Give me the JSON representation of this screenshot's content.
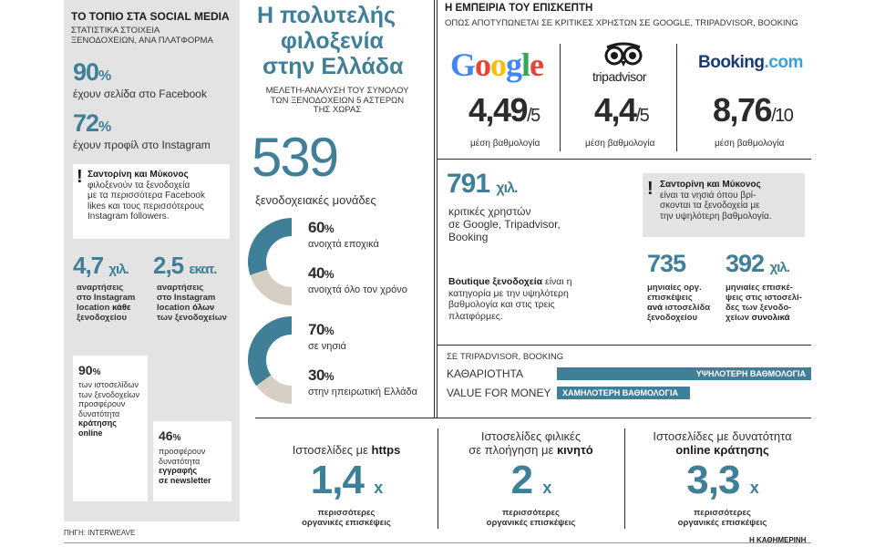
{
  "left": {
    "heading": "ΤΟ ΤΟΠΙΟ ΣΤΑ SOCIAL MEDIA",
    "subheading_line1": "ΣΤΑΤΙΣΤΙΚΑ ΣΤΟΙΧΕΙΑ",
    "subheading_line2": "ΞΕΝΟΔΟΧΕΙΩΝ, ΑΝΑ ΠΛΑΤΦΟΡΜΑ",
    "facebook_pct": "90",
    "facebook_text": "έχουν σελίδα στο Facebook",
    "instagram_pct": "72",
    "instagram_text": "έχουν προφίλ στο Instagram",
    "note_excl": "!",
    "note_bold": "Σαντορίνη και Μύκονος",
    "note_line1": "φιλοξενούν τα ξενοδοχεία",
    "note_line2": "με τα περισσότερα Facebook",
    "note_line3": "likes και τους περισσότερους",
    "note_line4": "Instagram followers.",
    "stat_a_value": "4,7",
    "stat_a_unit": "χιλ.",
    "stat_a_line1": "αναρτήσεις",
    "stat_a_line2": "στο Instagram",
    "stat_a_line3": "location",
    "stat_a_line3_bold": "κάθε",
    "stat_a_line4": "ξενοδοχείου",
    "stat_b_value": "2,5",
    "stat_b_unit": "εκατ.",
    "stat_b_line1": "αναρτήσεις",
    "stat_b_line2": "στο Instagram",
    "stat_b_line3": "location",
    "stat_b_line3_bold": "όλων",
    "stat_b_line4": "των ξενοδοχείων",
    "booking_pct": "90",
    "booking_line1": "των ιστοσελίδων",
    "booking_line2": "των ξενοδοχείων",
    "booking_line3": "προσφέρουν",
    "booking_line4": "δυνατότητα",
    "booking_line5": "κράτησης",
    "booking_line6": "online",
    "newsletter_pct": "46",
    "newsletter_line1": "προσφέρουν",
    "newsletter_line2": "δυνατότητα",
    "newsletter_line3": "εγγραφής",
    "newsletter_line4": "σε newsletter",
    "source": "ΠΗΓΗ: INTERWEAVE"
  },
  "middle": {
    "title_line1": "Η πολυτελής",
    "title_line2": "φιλοξενία",
    "title_line3": "στην Ελλάδα",
    "sub_line1": "ΜΕΛΕΤΗ-ΑΝΑΛΥΣΗ ΤΟΥ ΣΥΝΟΛΟΥ",
    "sub_line2": "ΤΩΝ ΞΕΝΟΔΟΧΕΙΩΝ 5 ΑΣΤΕΡΩΝ",
    "sub_line3": "ΤΗΣ ΧΩΡΑΣ",
    "total": "539",
    "total_label": "ξενοδοχειακές μονάδες",
    "donut1": {
      "a_pct": "60",
      "a_label": "ανοιχτά εποχικά",
      "b_pct": "40",
      "b_label": "ανοιχτά όλο τον χρόνο",
      "a_value": 0.6
    },
    "donut2": {
      "a_pct": "70",
      "a_label": "σε νησιά",
      "b_pct": "30",
      "b_label": "στην ηπειρωτική Ελλάδα",
      "a_value": 0.7
    }
  },
  "right": {
    "heading": "Η ΕΜΠΕΙΡΙΑ ΤΟΥ ΕΠΙΣΚΕΠΤΗ",
    "subheading": "ΟΠΩΣ ΑΠΟΤΥΠΩΝΕΤΑΙ ΣΕ ΚΡΙΤΙΚΕΣ ΧΡΗΣΤΩΝ ΣΕ GOOGLE, TRIPADVISOR, BOOKING",
    "google": {
      "logo": "Google",
      "rating": "4,49",
      "scale": "/5",
      "label": "μέση βαθμολογία"
    },
    "tripadvisor": {
      "logo": "tripadvisor",
      "rating": "4,4",
      "scale": "/5",
      "label": "μέση βαθμολογία"
    },
    "booking": {
      "logo_main": "Booking",
      "logo_ext": ".com",
      "rating": "8,76",
      "scale": "/10",
      "label": "μέση βαθμολογία"
    },
    "reviews_value": "791",
    "reviews_unit": "χιλ.",
    "reviews_line1": "κριτικές χρηστών",
    "reviews_line2": "σε Google, Tripadvisor,",
    "reviews_line3": "Booking",
    "boutique_bold": "Boutique ξενοδοχεία",
    "boutique_rest1": " είναι η",
    "boutique_line2": "κατηγορία με την υψηλότερη",
    "boutique_line3": "βαθμολογία και στις τρεις",
    "boutique_line4": "πλατφόρμες.",
    "note_excl": "!",
    "note_bold": "Σαντορίνη και Μύκονος",
    "note_line1": "είναι τα νησιά όπου βρί-",
    "note_line2": "σκονται τα ξενοδοχεία με",
    "note_line3": "την υψηλότερη βαθμολογία.",
    "visits_a_value": "735",
    "visits_a_line1": "μηνιαίες οργ.",
    "visits_a_line2": "επισκέψεις",
    "visits_a_line3_bold": "ανά",
    "visits_a_line3": " ιστοσελίδα",
    "visits_a_line4": "ξενοδοχείου",
    "visits_b_value": "392",
    "visits_b_unit": "χιλ.",
    "visits_b_line1": "μηνιαίες επισκέ-",
    "visits_b_line2": "ψεις στις ιστοσελί-",
    "visits_b_line3": "δες των ξενοδο-",
    "visits_b_line4": "χείων",
    "visits_b_line4_bold": "συνολικά",
    "platform_label": "ΣΕ TRIPADVISOR, BOOKING",
    "cleanliness_label": "ΚΑΘΑΡΙΟΤΗΤΑ",
    "cleanliness_bar": "ΥΨΗΛΟΤΕΡΗ ΒΑΘΜΟΛΟΓΙΑ",
    "value_label": "VALUE FOR MONEY",
    "value_bar": "ΧΑΜΗΛΟΤΕΡΗ ΒΑΘΜΟΛΟΓΙΑ"
  },
  "bottom": {
    "https_line1": "Ιστοσελίδες με",
    "https_bold": "https",
    "https_value": "1,4",
    "mobile_line1": "Ιστοσελίδες φιλικές",
    "mobile_line2": "σε πλοήγηση με",
    "mobile_bold": "κινητό",
    "mobile_value": "2",
    "online_line1": "Ιστοσελίδες με δυνατότητα",
    "online_bold": "online κράτησης",
    "online_value": "3,3",
    "times": "x",
    "more_line1": "περισσότερες",
    "more_line2": "οργανικές επισκέψεις",
    "brand": "Η ΚΑΘΗΜΕΡΙΝΗ"
  },
  "colors": {
    "accent": "#3f7f97",
    "gray_panel": "#e3e3e3",
    "donut_light": "#d6cfc6"
  },
  "percent_sign": "%"
}
